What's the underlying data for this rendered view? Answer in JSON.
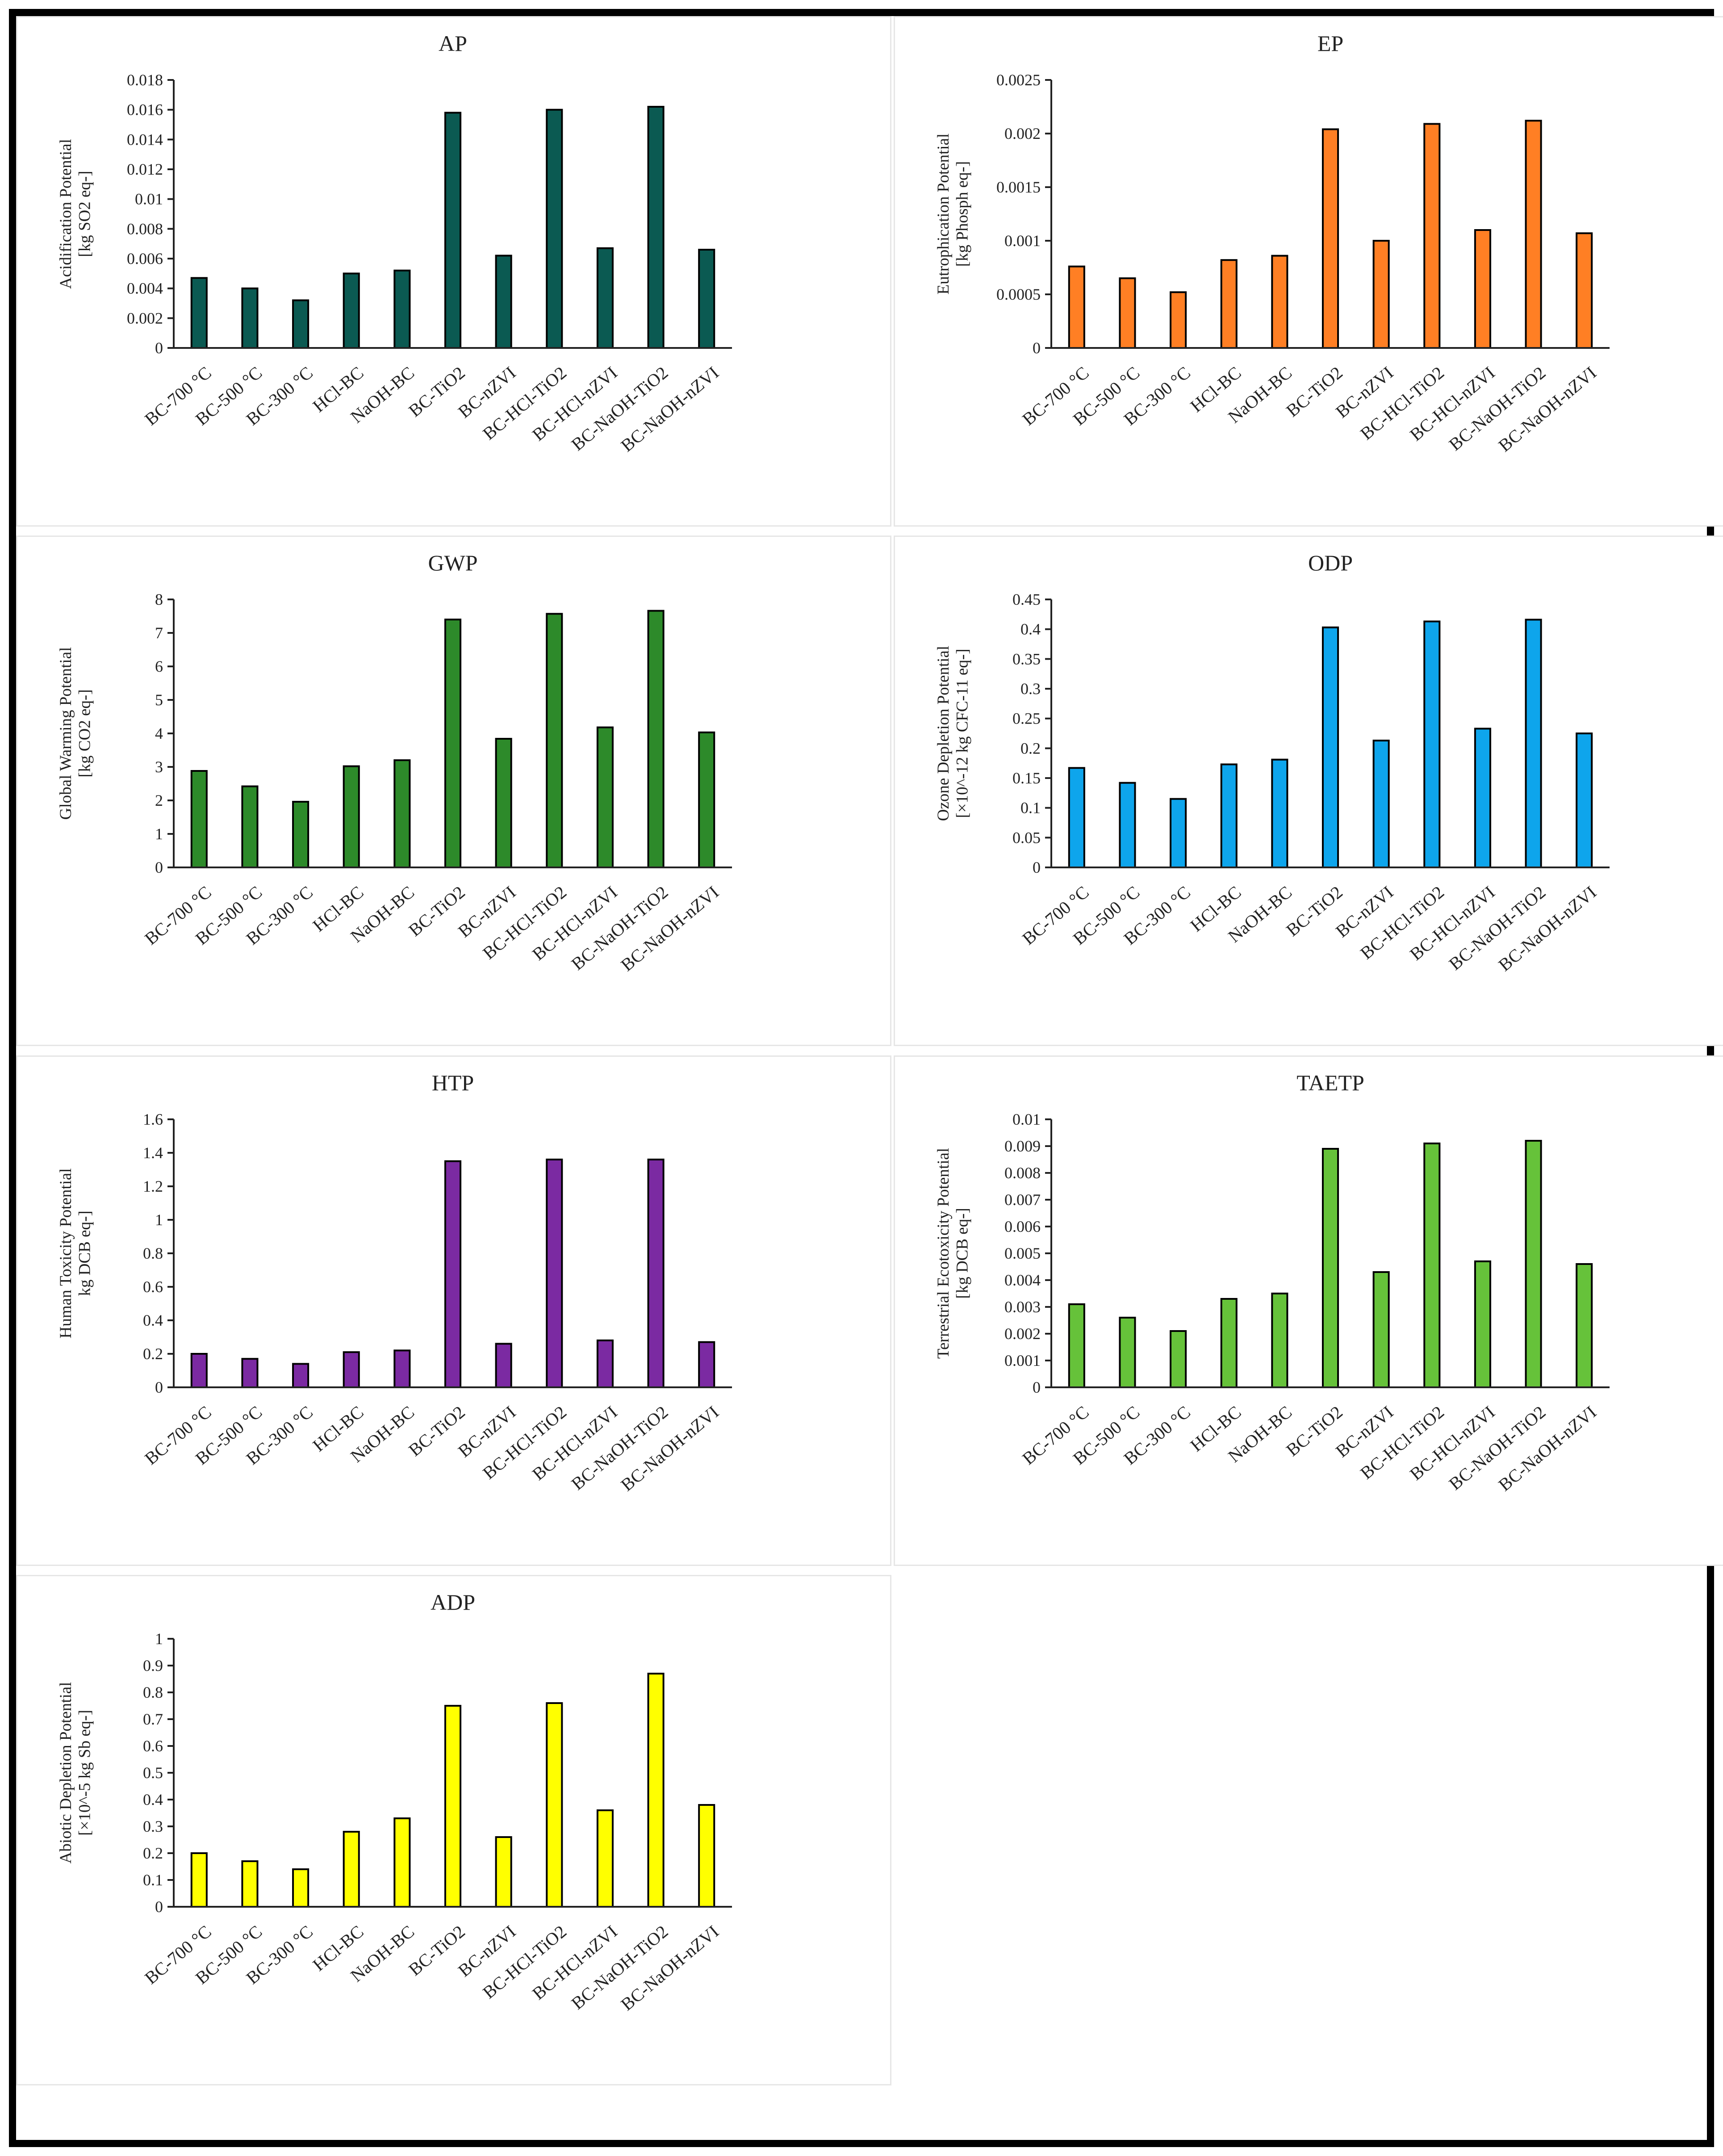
{
  "categories": [
    "BC-700 °C",
    "BC-500 °C",
    "BC-300 °C",
    "HCl-BC",
    "NaOH-BC",
    "BC-TiO2",
    "BC-nZVI",
    "BC-HCl-TiO2",
    "BC-HCl-nZVI",
    "BC-NaOH-TiO2",
    "BC-NaOH-nZVI"
  ],
  "chart_data": [
    {
      "id": "ap",
      "type": "bar",
      "title": "AP",
      "ylabel": [
        "Acidification Potential",
        "[kg SO2 eq-]"
      ],
      "color": "#0b5a52",
      "ylim": [
        0,
        0.018
      ],
      "yticks": [
        "0",
        "0.002",
        "0.004",
        "0.006",
        "0.008",
        "0.01",
        "0.012",
        "0.014",
        "0.016",
        "0.018"
      ],
      "values": [
        0.0047,
        0.004,
        0.0032,
        0.005,
        0.0052,
        0.0158,
        0.0062,
        0.016,
        0.0067,
        0.0162,
        0.0066
      ]
    },
    {
      "id": "ep",
      "type": "bar",
      "title": "EP",
      "ylabel": [
        "Eutrophication Potential",
        "[kg Phosph eq-]"
      ],
      "color": "#ff7f24",
      "ylim": [
        0,
        0.0025
      ],
      "yticks": [
        "0",
        "0.0005",
        "0.001",
        "0.0015",
        "0.002",
        "0.0025"
      ],
      "values": [
        0.00076,
        0.00065,
        0.00052,
        0.00082,
        0.00086,
        0.00204,
        0.001,
        0.00209,
        0.0011,
        0.00212,
        0.00107
      ]
    },
    {
      "id": "gwp",
      "type": "bar",
      "title": "GWP",
      "ylabel": [
        "Global Warming Potential",
        "[kg CO2 eq-]"
      ],
      "color": "#2d8a2a",
      "ylim": [
        0,
        8
      ],
      "yticks": [
        "0",
        "1",
        "2",
        "3",
        "4",
        "5",
        "6",
        "7",
        "8"
      ],
      "values": [
        2.88,
        2.42,
        1.96,
        3.02,
        3.2,
        7.4,
        3.84,
        7.57,
        4.18,
        7.66,
        4.03
      ]
    },
    {
      "id": "odp",
      "type": "bar",
      "title": "ODP",
      "ylabel": [
        "Ozone Depletion Potential",
        "[×10^-12 kg CFC-11 eq-]"
      ],
      "color": "#0ea5ec",
      "ylim": [
        0,
        0.45
      ],
      "yticks": [
        "0",
        "0.05",
        "0.1",
        "0.15",
        "0.2",
        "0.25",
        "0.3",
        "0.35",
        "0.4",
        "0.45"
      ],
      "values": [
        0.167,
        0.142,
        0.115,
        0.173,
        0.181,
        0.403,
        0.213,
        0.413,
        0.233,
        0.416,
        0.225
      ]
    },
    {
      "id": "htp",
      "type": "bar",
      "title": "HTP",
      "ylabel": [
        "Human Toxicity Potential",
        "kg DCB eq-]"
      ],
      "color": "#7b2aa2",
      "ylim": [
        0,
        1.6
      ],
      "yticks": [
        "0",
        "0.2",
        "0.4",
        "0.6",
        "0.8",
        "1",
        "1.2",
        "1.4",
        "1.6"
      ],
      "values": [
        0.2,
        0.17,
        0.14,
        0.21,
        0.22,
        1.35,
        0.26,
        1.36,
        0.28,
        1.36,
        0.27
      ]
    },
    {
      "id": "taetp",
      "type": "bar",
      "title": "TAETP",
      "ylabel": [
        "Terrestrial Ecotoxicity  Potential",
        "[kg DCB eq-]"
      ],
      "color": "#66c23a",
      "ylim": [
        0,
        0.01
      ],
      "yticks": [
        "0",
        "0.001",
        "0.002",
        "0.003",
        "0.004",
        "0.005",
        "0.006",
        "0.007",
        "0.008",
        "0.009",
        "0.01"
      ],
      "values": [
        0.0031,
        0.0026,
        0.0021,
        0.0033,
        0.0035,
        0.0089,
        0.0043,
        0.0091,
        0.0047,
        0.0092,
        0.0046
      ]
    },
    {
      "id": "adp",
      "type": "bar",
      "title": "ADP",
      "ylabel": [
        "Abiotic Depletion Potential",
        "[×10^-5 kg Sb eq-]"
      ],
      "color": "#ffff00",
      "ylim": [
        0,
        1
      ],
      "yticks": [
        "0",
        "0.1",
        "0.2",
        "0.3",
        "0.4",
        "0.5",
        "0.6",
        "0.7",
        "0.8",
        "0.9",
        "1"
      ],
      "values": [
        0.2,
        0.17,
        0.14,
        0.28,
        0.33,
        0.75,
        0.26,
        0.76,
        0.36,
        0.87,
        0.38
      ]
    }
  ]
}
